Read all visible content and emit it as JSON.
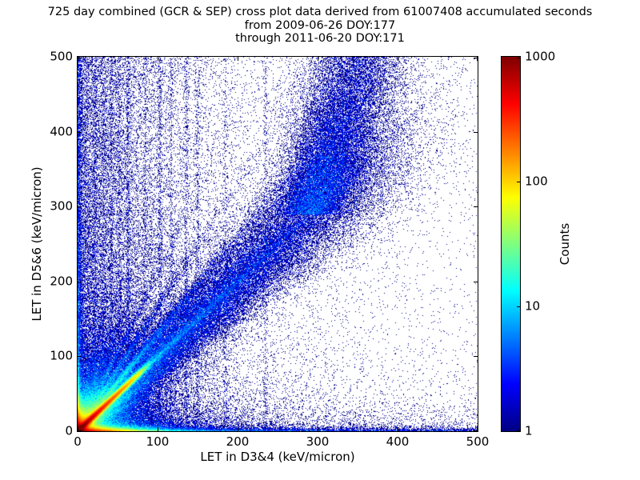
{
  "title": {
    "line1": "725 day combined (GCR & SEP) cross plot data derived from 61007408 accumulated seconds",
    "line2": "from 2009-06-26 DOY:177",
    "line3": "through 2011-06-20 DOY:171"
  },
  "colors": {
    "background": "#ffffff",
    "axis": "#000000",
    "text": "#000000",
    "single_count_dot": "#000085"
  },
  "chart_data": {
    "type": "heatmap",
    "subtype": "2d-histogram cross plot, log-scaled counts, jet colormap, white = zero counts",
    "title": "725 day combined (GCR & SEP) cross plot data derived from 61007408 accumulated seconds from 2009-06-26 DOY:177 through 2011-06-20 DOY:171",
    "xlabel": "LET in D3&4 (keV/micron)",
    "ylabel": "LET in D5&6 (keV/micron)",
    "xlim": [
      0,
      500
    ],
    "ylim": [
      0,
      500
    ],
    "xticks": [
      0,
      100,
      200,
      300,
      400,
      500
    ],
    "yticks": [
      0,
      100,
      200,
      300,
      400,
      500
    ],
    "grid": false,
    "tick_direction": "in",
    "colorbar": {
      "label": "Counts",
      "scale": "log",
      "min": 1,
      "max": 1000,
      "ticks": [
        1,
        10,
        100,
        1000
      ],
      "position": "right",
      "colormap": "jet",
      "jet_stops": [
        [
          0.0,
          [
            0,
            0,
            133
          ]
        ],
        [
          0.125,
          [
            0,
            0,
            255
          ]
        ],
        [
          0.375,
          [
            0,
            255,
            255
          ]
        ],
        [
          0.625,
          [
            255,
            255,
            0
          ]
        ],
        [
          0.875,
          [
            255,
            0,
            0
          ]
        ],
        [
          1.0,
          [
            128,
            0,
            0
          ]
        ]
      ]
    },
    "features": {
      "comment": "Intensity model (expected counts per 1x1 keV/micron bin) reconstructed from the plotted 2D histogram; rendered with Poisson speckle.",
      "seed": 42,
      "hotspot": {
        "amp": 1300,
        "scale": 5
      },
      "bottom_band": {
        "terms": [
          [
            1000,
            26
          ],
          [
            9,
            220
          ]
        ],
        "floor": 1.6,
        "thickness": 2.3,
        "halo_terms": [
          [
            10,
            45
          ],
          [
            1.1,
            260
          ]
        ],
        "halo_thickness": 18
      },
      "left_band": {
        "terms": [
          [
            1000,
            14
          ],
          [
            8,
            180
          ]
        ],
        "floor": 1.0,
        "thickness": 2.3,
        "halo_terms": [
          [
            8,
            40
          ],
          [
            0.9,
            240
          ]
        ],
        "halo_thickness": 14
      },
      "diagonal": {
        "core": {
          "amp": 1000,
          "scale": 29,
          "sigma": 2.0,
          "cut_t": 70,
          "cut_w": 15
        },
        "mid": {
          "amp": 12,
          "scale": 90,
          "sigma": 3.0
        },
        "broad": {
          "amp": 5.5,
          "scale": 210,
          "sigma0": 5,
          "sigma_grow": 0.085,
          "fade_t": 365,
          "fade_w": 28
        }
      },
      "upper_branch": {
        "y0": 290,
        "slope": 0.3,
        "amp": 3.2,
        "yscale": 170,
        "sigma0": 20,
        "sigma_grow": 0.07
      },
      "wedge": {
        "amp": 26,
        "xscale": 26,
        "ymin": 1.5
      },
      "rays": {
        "sigma": 2.0,
        "halo_sigma": 4.5,
        "halo_frac": 0.14,
        "halo_rscale_mult": 2.2,
        "list": [
          [
            1.3,
            60,
            45
          ],
          [
            1.65,
            35,
            42
          ],
          [
            2.1,
            25,
            40
          ],
          [
            2.7,
            20,
            36
          ],
          [
            3.5,
            16,
            33
          ],
          [
            4.6,
            13,
            30
          ],
          [
            6.2,
            11,
            28
          ],
          [
            0.75,
            22,
            34
          ],
          [
            0.55,
            14,
            28
          ]
        ]
      },
      "stripes": {
        "sigma": 1.4,
        "yscale": 800,
        "list": [
          [
            22,
            0.5
          ],
          [
            32,
            0.45
          ],
          [
            42,
            0.5
          ],
          [
            52,
            0.45
          ],
          [
            63,
            0.75
          ],
          [
            85,
            0.35
          ],
          [
            103,
            0.6
          ],
          [
            117,
            0.4
          ],
          [
            136,
            0.45
          ],
          [
            150,
            0.4
          ],
          [
            185,
            0.25
          ],
          [
            235,
            0.3
          ]
        ]
      },
      "background": {
        "terms": [
          [
            0.5,
            60
          ],
          [
            0.1,
            160
          ]
        ],
        "floor": 0.006,
        "ybias_amp": 1.3,
        "ybias_scale": 170,
        "uniform": 0.002
      }
    }
  }
}
